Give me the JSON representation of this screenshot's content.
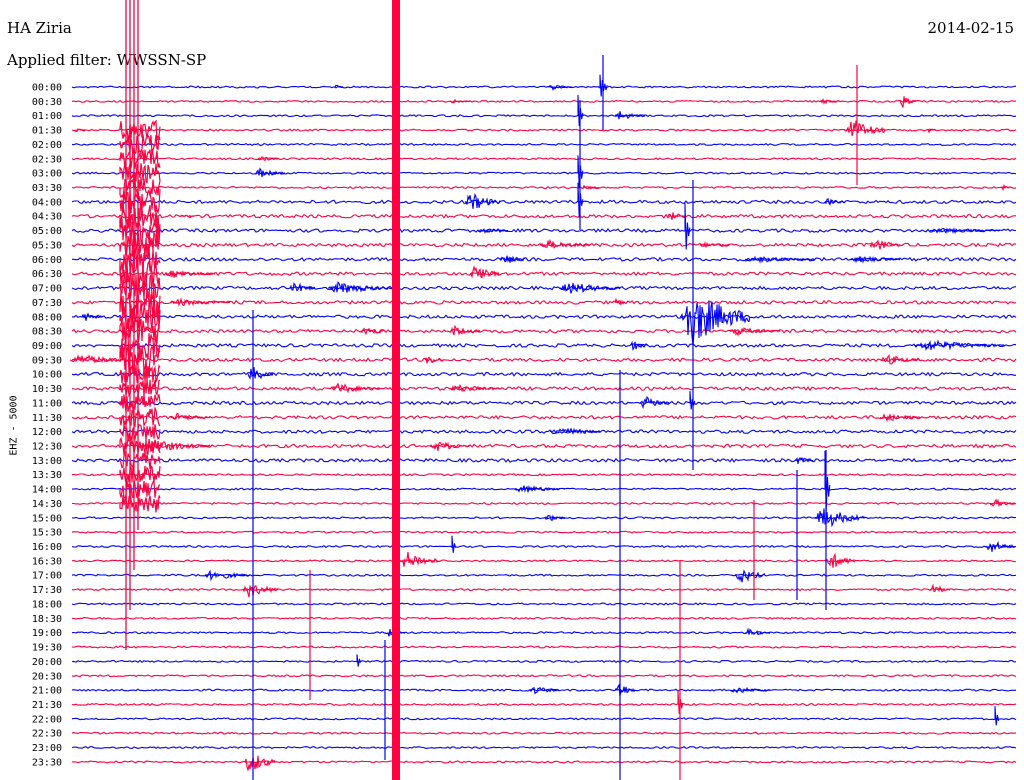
{
  "header": {
    "station": "HA Ziria",
    "date": "2014-02-15",
    "filter": "Applied filter: WWSSN-SP"
  },
  "channel": "EHZ - 5000",
  "colors": {
    "blue_trace": "#0000ff",
    "red_trace": "#ff0040",
    "background": "#ffffff",
    "text": "#000000"
  },
  "chart_data": {
    "type": "line",
    "title": "",
    "xlabel": "",
    "ylabel": "",
    "grid": false,
    "legend": "none",
    "rows": [
      {
        "label": "00:00",
        "color": "blue"
      },
      {
        "label": "00:30",
        "color": "red"
      },
      {
        "label": "01:00",
        "color": "blue"
      },
      {
        "label": "01:30",
        "color": "red"
      },
      {
        "label": "02:00",
        "color": "blue"
      },
      {
        "label": "02:30",
        "color": "red"
      },
      {
        "label": "03:00",
        "color": "blue"
      },
      {
        "label": "03:30",
        "color": "red"
      },
      {
        "label": "04:00",
        "color": "blue"
      },
      {
        "label": "04:30",
        "color": "red"
      },
      {
        "label": "05:00",
        "color": "blue"
      },
      {
        "label": "05:30",
        "color": "red"
      },
      {
        "label": "06:00",
        "color": "blue"
      },
      {
        "label": "06:30",
        "color": "red"
      },
      {
        "label": "07:00",
        "color": "blue"
      },
      {
        "label": "07:30",
        "color": "red"
      },
      {
        "label": "08:00",
        "color": "blue"
      },
      {
        "label": "08:30",
        "color": "red"
      },
      {
        "label": "09:00",
        "color": "blue"
      },
      {
        "label": "09:30",
        "color": "red"
      },
      {
        "label": "10:00",
        "color": "blue"
      },
      {
        "label": "10:30",
        "color": "red"
      },
      {
        "label": "11:00",
        "color": "blue"
      },
      {
        "label": "11:30",
        "color": "red"
      },
      {
        "label": "12:00",
        "color": "blue"
      },
      {
        "label": "12:30",
        "color": "red"
      },
      {
        "label": "13:00",
        "color": "blue"
      },
      {
        "label": "13:30",
        "color": "red"
      },
      {
        "label": "14:00",
        "color": "blue"
      },
      {
        "label": "14:30",
        "color": "red"
      },
      {
        "label": "15:00",
        "color": "blue"
      },
      {
        "label": "15:30",
        "color": "red"
      },
      {
        "label": "16:00",
        "color": "blue"
      },
      {
        "label": "16:30",
        "color": "red"
      },
      {
        "label": "17:00",
        "color": "blue"
      },
      {
        "label": "17:30",
        "color": "red"
      },
      {
        "label": "18:00",
        "color": "blue"
      },
      {
        "label": "18:30",
        "color": "red"
      },
      {
        "label": "19:00",
        "color": "blue"
      },
      {
        "label": "19:30",
        "color": "red"
      },
      {
        "label": "20:00",
        "color": "blue"
      },
      {
        "label": "20:30",
        "color": "red"
      },
      {
        "label": "21:00",
        "color": "blue"
      },
      {
        "label": "21:30",
        "color": "red"
      },
      {
        "label": "22:00",
        "color": "blue"
      },
      {
        "label": "22:30",
        "color": "red"
      },
      {
        "label": "23:00",
        "color": "blue"
      },
      {
        "label": "23:30",
        "color": "red"
      }
    ]
  }
}
